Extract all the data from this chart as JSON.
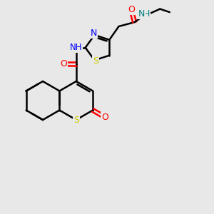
{
  "background_color": "#e8e8e8",
  "bond_color": "#000000",
  "bond_width": 1.8,
  "font_size": 9,
  "atom_colors": {
    "C": "#000000",
    "N_blue": "#0000ff",
    "N_teal": "#008080",
    "O": "#ff0000",
    "S": "#cccc00",
    "H": "#000000"
  },
  "layout": {
    "xlim": [
      0,
      10
    ],
    "ylim": [
      0,
      10
    ]
  }
}
